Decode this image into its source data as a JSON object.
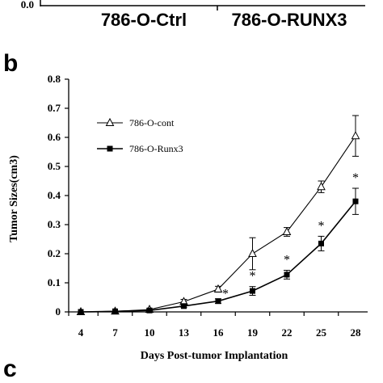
{
  "panel_top": {
    "y_tick_label": "0.0",
    "categories": [
      "786-O-Ctrl",
      "786-O-RUNX3"
    ]
  },
  "panel_b": {
    "letter": "b"
  },
  "panel_c": {
    "letter": "c"
  },
  "chart_data": {
    "type": "line",
    "xlabel": "Days Post-tumor Implantation",
    "ylabel": "Tumor Sizes(cm3)",
    "x": [
      4,
      7,
      10,
      13,
      16,
      19,
      22,
      25,
      28
    ],
    "x_tick_labels": [
      "4",
      "7",
      "10",
      "13",
      "16",
      "19",
      "22",
      "25",
      "28"
    ],
    "ylim": [
      0,
      0.8
    ],
    "y_ticks": [
      0,
      0.1,
      0.2,
      0.3,
      0.4,
      0.5,
      0.6,
      0.7,
      0.8
    ],
    "y_tick_labels": [
      "0",
      "0.1",
      "0.2",
      "0.3",
      "0.4",
      "0.5",
      "0.6",
      "0.7",
      "0.8"
    ],
    "grid": false,
    "legend_position": "upper-left",
    "series": [
      {
        "name": "786-O-cont",
        "marker": "open-triangle",
        "values": [
          0,
          0.002,
          0.008,
          0.035,
          0.078,
          0.2,
          0.275,
          0.43,
          0.605
        ],
        "errors": [
          0,
          0,
          0.003,
          0.008,
          0.01,
          0.055,
          0.015,
          0.02,
          0.07
        ]
      },
      {
        "name": "786-O-Runx3",
        "marker": "filled-square",
        "values": [
          0,
          0.002,
          0.005,
          0.02,
          0.037,
          0.072,
          0.128,
          0.235,
          0.38
        ],
        "errors": [
          0,
          0,
          0.002,
          0.005,
          0.008,
          0.015,
          0.015,
          0.025,
          0.045
        ]
      }
    ],
    "annotations": [
      {
        "text": "*",
        "x": 16
      },
      {
        "text": "*",
        "x": 19
      },
      {
        "text": "*",
        "x": 22
      },
      {
        "text": "*",
        "x": 25
      },
      {
        "text": "*",
        "x": 28
      }
    ],
    "colors": {
      "line": "#000000",
      "marker_fill_open": "#ffffff",
      "marker_fill_solid": "#000000"
    }
  }
}
